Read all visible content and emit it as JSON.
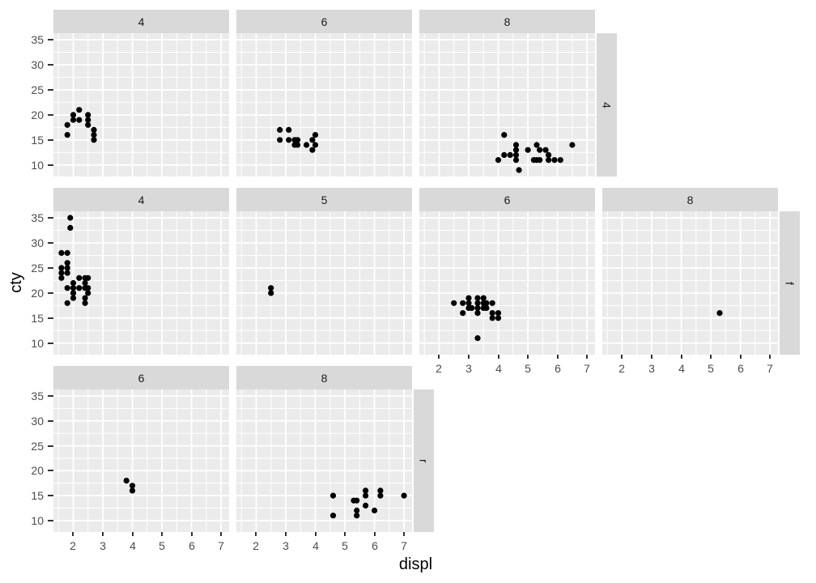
{
  "chart_data": {
    "type": "scatter",
    "title": "",
    "xlabel": "displ",
    "ylabel": "cty",
    "x_ticks": [
      2,
      3,
      4,
      5,
      6,
      7
    ],
    "y_ticks": [
      35,
      30,
      25,
      20,
      15,
      10
    ],
    "x_minor": [
      1.5,
      2.5,
      3.5,
      4.5,
      5.5,
      6.5
    ],
    "y_minor": [
      12.5,
      17.5,
      22.5,
      27.5,
      32.5
    ],
    "xlim": [
      1.33,
      7.27
    ],
    "ylim": [
      7.7,
      36.3
    ],
    "grid": "on",
    "legend": "none",
    "facet": {
      "row_var": "drv",
      "col_var": "cyl",
      "row_labels": [
        "4",
        "f",
        "r"
      ]
    },
    "rows": [
      {
        "label": "4",
        "panels": [
          {
            "col": "4",
            "points": [
              [
                1.8,
                16
              ],
              [
                1.8,
                18
              ],
              [
                2.0,
                19
              ],
              [
                2.0,
                20
              ],
              [
                2.2,
                19
              ],
              [
                2.2,
                21
              ],
              [
                2.5,
                18
              ],
              [
                2.5,
                19
              ],
              [
                2.5,
                20
              ],
              [
                2.7,
                15
              ],
              [
                2.7,
                16
              ],
              [
                2.7,
                17
              ]
            ]
          },
          {
            "col": "6",
            "points": [
              [
                2.8,
                15
              ],
              [
                2.8,
                17
              ],
              [
                3.1,
                15
              ],
              [
                3.1,
                17
              ],
              [
                3.3,
                14
              ],
              [
                3.3,
                15
              ],
              [
                3.4,
                14
              ],
              [
                3.4,
                15
              ],
              [
                3.7,
                14
              ],
              [
                3.9,
                13
              ],
              [
                3.9,
                15
              ],
              [
                4.0,
                14
              ],
              [
                4.0,
                16
              ]
            ]
          },
          {
            "col": "8",
            "points": [
              [
                4.0,
                11
              ],
              [
                4.2,
                12
              ],
              [
                4.2,
                16
              ],
              [
                4.4,
                12
              ],
              [
                4.6,
                11
              ],
              [
                4.6,
                12
              ],
              [
                4.6,
                13
              ],
              [
                4.6,
                14
              ],
              [
                4.7,
                9
              ],
              [
                5.0,
                13
              ],
              [
                5.2,
                11
              ],
              [
                5.3,
                11
              ],
              [
                5.3,
                14
              ],
              [
                5.4,
                11
              ],
              [
                5.4,
                13
              ],
              [
                5.6,
                13
              ],
              [
                5.7,
                11
              ],
              [
                5.7,
                12
              ],
              [
                5.9,
                11
              ],
              [
                6.1,
                11
              ],
              [
                6.5,
                14
              ]
            ]
          }
        ]
      },
      {
        "label": "f",
        "panels": [
          {
            "col": "4",
            "points": [
              [
                1.6,
                23
              ],
              [
                1.6,
                24
              ],
              [
                1.6,
                25
              ],
              [
                1.6,
                28
              ],
              [
                1.8,
                18
              ],
              [
                1.8,
                21
              ],
              [
                1.8,
                24
              ],
              [
                1.8,
                25
              ],
              [
                1.8,
                26
              ],
              [
                1.8,
                28
              ],
              [
                1.9,
                33
              ],
              [
                1.9,
                35
              ],
              [
                2.0,
                19
              ],
              [
                2.0,
                20
              ],
              [
                2.0,
                21
              ],
              [
                2.0,
                22
              ],
              [
                2.2,
                21
              ],
              [
                2.2,
                23
              ],
              [
                2.4,
                18
              ],
              [
                2.4,
                19
              ],
              [
                2.4,
                21
              ],
              [
                2.4,
                22
              ],
              [
                2.4,
                23
              ],
              [
                2.5,
                20
              ],
              [
                2.5,
                21
              ],
              [
                2.5,
                23
              ]
            ]
          },
          {
            "col": "5",
            "points": [
              [
                2.5,
                20
              ],
              [
                2.5,
                21
              ]
            ]
          },
          {
            "col": "6",
            "points": [
              [
                2.5,
                18
              ],
              [
                2.8,
                16
              ],
              [
                2.8,
                18
              ],
              [
                3.0,
                17
              ],
              [
                3.0,
                18
              ],
              [
                3.0,
                19
              ],
              [
                3.1,
                17
              ],
              [
                3.3,
                11
              ],
              [
                3.3,
                16
              ],
              [
                3.3,
                17
              ],
              [
                3.3,
                18
              ],
              [
                3.3,
                19
              ],
              [
                3.5,
                17
              ],
              [
                3.5,
                18
              ],
              [
                3.5,
                19
              ],
              [
                3.6,
                17
              ],
              [
                3.6,
                18
              ],
              [
                3.8,
                15
              ],
              [
                3.8,
                16
              ],
              [
                3.8,
                18
              ],
              [
                4.0,
                15
              ],
              [
                4.0,
                16
              ]
            ]
          },
          {
            "col": "8",
            "points": [
              [
                5.3,
                16
              ]
            ]
          }
        ]
      },
      {
        "label": "r",
        "panels": [
          {
            "col": "6",
            "points": [
              [
                3.8,
                18
              ],
              [
                4.0,
                16
              ],
              [
                4.0,
                17
              ]
            ]
          },
          {
            "col": "8",
            "points": [
              [
                4.6,
                11
              ],
              [
                4.6,
                15
              ],
              [
                5.3,
                14
              ],
              [
                5.4,
                11
              ],
              [
                5.4,
                12
              ],
              [
                5.4,
                14
              ],
              [
                5.7,
                13
              ],
              [
                5.7,
                15
              ],
              [
                5.7,
                16
              ],
              [
                6.0,
                12
              ],
              [
                6.2,
                15
              ],
              [
                6.2,
                16
              ],
              [
                7.0,
                15
              ]
            ]
          }
        ]
      }
    ],
    "colors": {
      "panel_bg": "#EBEBEB",
      "grid": "#FFFFFF",
      "strip_bg": "#D9D9D9",
      "strip_text": "#1A1A1A",
      "tick_text": "#4D4D4D",
      "tick_mark": "#333333",
      "axis_title": "#000000",
      "point": "#000000",
      "background": "#FFFFFF"
    }
  }
}
